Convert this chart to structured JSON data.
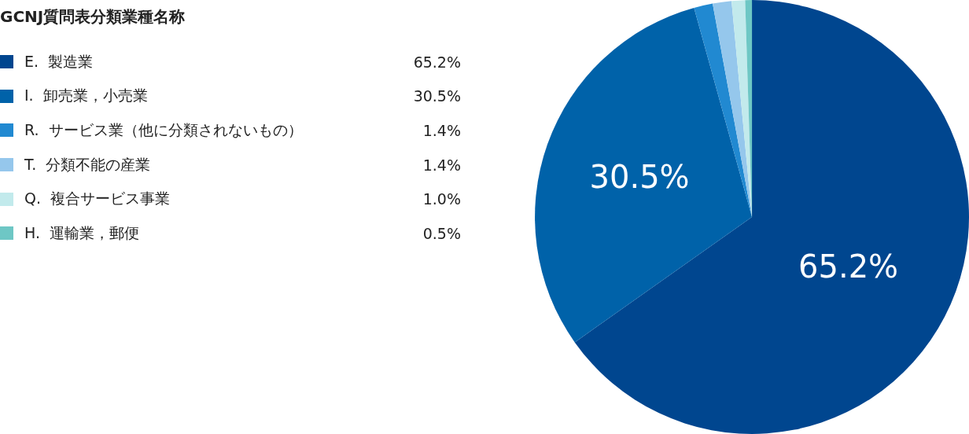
{
  "chart_data": {
    "type": "pie",
    "legend_title": "GCNJ質問表分類業種名称",
    "categories": [
      "E.  製造業",
      "I.  卸売業，小売業",
      "R.  サービス業（他に分類されないもの）",
      "T.  分類不能の産業",
      "Q.  複合サービス事業",
      "H.  運輸業，郵便"
    ],
    "values": [
      65.2,
      30.5,
      1.4,
      1.4,
      1.0,
      0.5
    ],
    "colors": [
      "#00468f",
      "#0062a9",
      "#2189d1",
      "#95c7ec",
      "#c2eaec",
      "#6ec7c5"
    ],
    "value_labels": [
      "65.2%",
      "30.5%",
      "1.4%",
      "1.4%",
      "1.0%",
      "0.5%"
    ],
    "legend": "left"
  }
}
